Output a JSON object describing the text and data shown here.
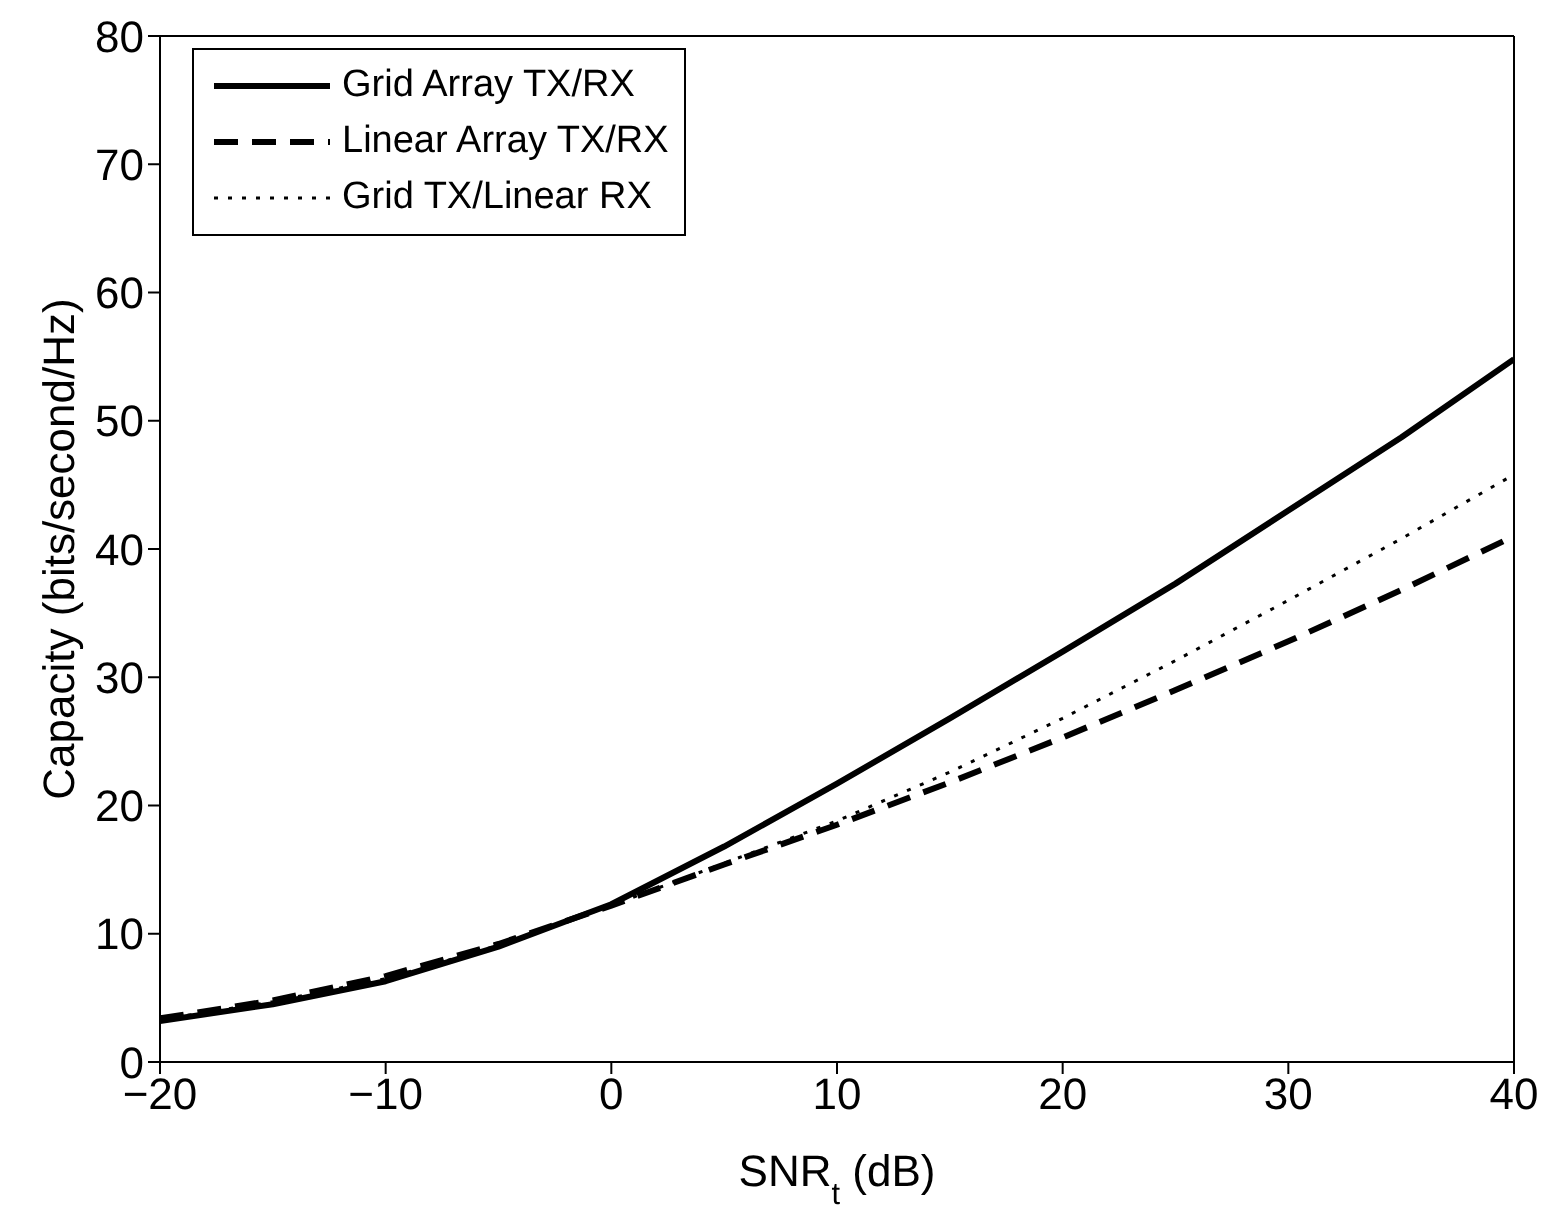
{
  "chart_data": {
    "type": "line",
    "xlabel": "SNR$_{t}$ (dB)",
    "ylabel": "Capacity (bits/second/Hz)",
    "x": [
      -20,
      -15,
      -10,
      -5,
      0,
      5,
      10,
      15,
      20,
      25,
      30,
      35,
      40
    ],
    "series": [
      {
        "name": "Grid Array TX/RX",
        "color": "#000000",
        "line_style": "solid",
        "values": [
          3.2,
          4.5,
          6.3,
          9.0,
          12.3,
          16.8,
          21.7,
          26.8,
          32,
          37.3,
          43,
          48.7,
          54.8
        ]
      },
      {
        "name": "Linear Array TX/RX",
        "color": "#000000",
        "line_style": "dashed",
        "values": [
          3.4,
          4.8,
          6.7,
          9.2,
          12.2,
          15.4,
          18.5,
          21.8,
          25.3,
          29,
          32.8,
          36.8,
          41
        ]
      },
      {
        "name": "Grid TX/Linear RX",
        "color": "#000000",
        "line_style": "dotted",
        "values": [
          3.3,
          4.7,
          6.5,
          9.1,
          12.2,
          15.5,
          18.8,
          22.6,
          26.8,
          31.3,
          36,
          40.8,
          45.8
        ]
      }
    ],
    "xlim": [
      -20,
      40
    ],
    "xticks": [
      -20,
      -10,
      0,
      10,
      20,
      30,
      40
    ],
    "ylim": [
      0,
      80
    ],
    "yticks": [
      0,
      10,
      20,
      30,
      40,
      50,
      60,
      70,
      80
    ],
    "grid": false,
    "legend": "top left",
    "marker": "none"
  }
}
